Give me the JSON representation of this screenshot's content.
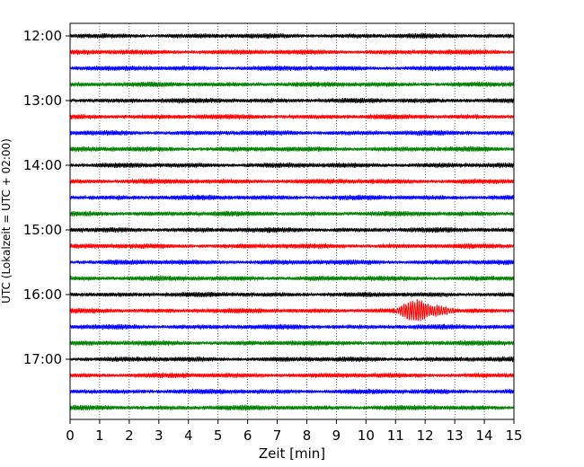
{
  "chart_data": {
    "type": "line",
    "title": "",
    "xlabel": "Zeit  [min]",
    "ylabel": "UTC (Lokalzeit = UTC + 02:00)",
    "xlim": [
      0,
      15
    ],
    "x_ticks": [
      "0",
      "1",
      "2",
      "3",
      "4",
      "5",
      "6",
      "7",
      "8",
      "9",
      "10",
      "11",
      "12",
      "13",
      "14",
      "15"
    ],
    "y_ticks": [
      {
        "label": "12:00",
        "row": 0
      },
      {
        "label": "13:00",
        "row": 4
      },
      {
        "label": "14:00",
        "row": 8
      },
      {
        "label": "15:00",
        "row": 12
      },
      {
        "label": "16:00",
        "row": 16
      },
      {
        "label": "17:00",
        "row": 20
      }
    ],
    "grid": "vertical dotted lines at each minute",
    "trace_interval_min": 15,
    "trace_colors": [
      "#000000",
      "#ff0000",
      "#0000ff",
      "#008000"
    ],
    "traces": [
      {
        "start": "12:00"
      },
      {
        "start": "12:15"
      },
      {
        "start": "12:30"
      },
      {
        "start": "12:45"
      },
      {
        "start": "13:00"
      },
      {
        "start": "13:15"
      },
      {
        "start": "13:30"
      },
      {
        "start": "13:45"
      },
      {
        "start": "14:00"
      },
      {
        "start": "14:15"
      },
      {
        "start": "14:30"
      },
      {
        "start": "14:45"
      },
      {
        "start": "15:00"
      },
      {
        "start": "15:15"
      },
      {
        "start": "15:30"
      },
      {
        "start": "15:45"
      },
      {
        "start": "16:00"
      },
      {
        "start": "16:15"
      },
      {
        "start": "16:30"
      },
      {
        "start": "16:45"
      },
      {
        "start": "17:00"
      },
      {
        "start": "17:15"
      },
      {
        "start": "17:30"
      },
      {
        "start": "17:45"
      }
    ],
    "events": [
      {
        "trace_start": "16:15",
        "onset_min": 11.0,
        "peak_min": 11.8,
        "end_min": 13.0
      }
    ]
  }
}
